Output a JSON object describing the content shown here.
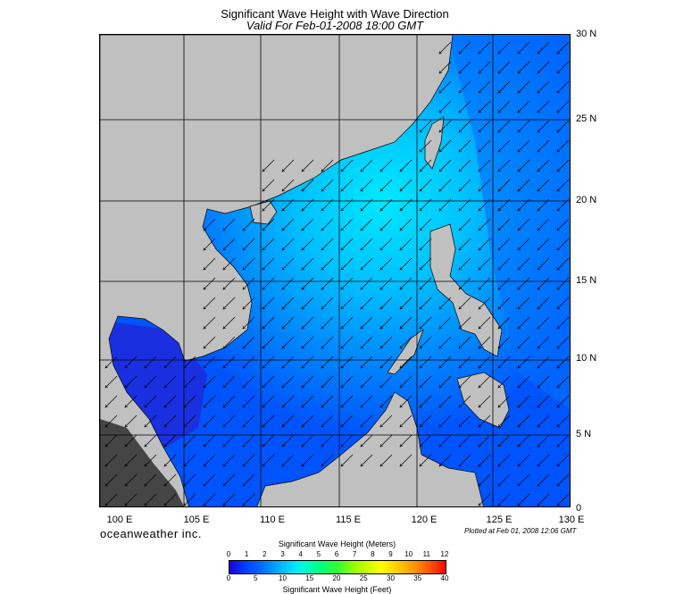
{
  "title": "Significant Wave Height with Wave Direction",
  "subtitle": "Valid For Feb-01-2008 18:00 GMT",
  "lat_labels": [
    "30 N",
    "25 N",
    "20 N",
    "15 N",
    "10 N",
    "5 N",
    "0"
  ],
  "lon_labels": [
    "100 E",
    "105 E",
    "110 E",
    "115 E",
    "120 E",
    "125 E",
    "130 E"
  ],
  "brand": "oceanweather inc.",
  "plotted": "Plotted at Feb 01, 2008 12:06 GMT",
  "colorbar": {
    "title": "Significant Wave Height (Meters)",
    "meters_ticks": [
      "0",
      "1",
      "2",
      "3",
      "4",
      "5",
      "6",
      "7",
      "8",
      "9",
      "10",
      "11",
      "12"
    ],
    "feet_ticks": [
      "0",
      "5",
      "10",
      "15",
      "20",
      "25",
      "30",
      "35",
      "40"
    ],
    "bottom_label": "Significant Wave Height (Feet)"
  },
  "colors": {
    "land": "#c0c0c0",
    "deep_blue": "#0022dd",
    "mid_blue": "#0055ff",
    "light_blue": "#00aaff",
    "cyan": "#00eeff"
  }
}
